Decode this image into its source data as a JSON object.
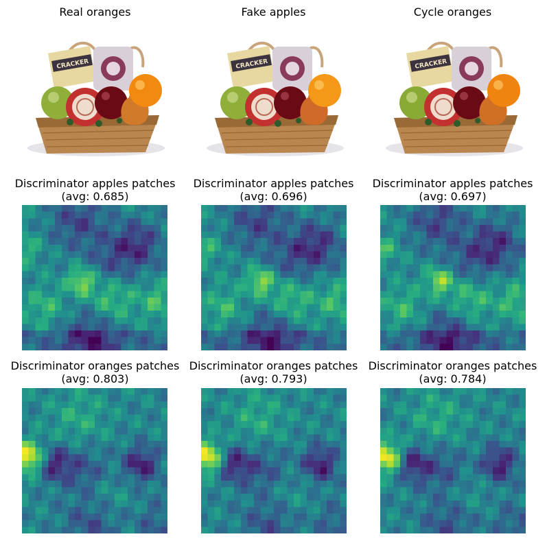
{
  "figure": {
    "rows": [
      {
        "kind": "photo",
        "panels": [
          {
            "title": "Real oranges",
            "subtitle": ""
          },
          {
            "title": "Fake apples",
            "subtitle": ""
          },
          {
            "title": "Cycle oranges",
            "subtitle": ""
          }
        ]
      },
      {
        "kind": "heatmap",
        "panels": [
          {
            "title": "Discriminator apples patches",
            "subtitle": "(avg: 0.685)"
          },
          {
            "title": "Discriminator apples patches",
            "subtitle": "(avg: 0.696)"
          },
          {
            "title": "Discriminator apples patches",
            "subtitle": "(avg: 0.697)"
          }
        ]
      },
      {
        "kind": "heatmap",
        "panels": [
          {
            "title": "Discriminator oranges patches",
            "subtitle": "(avg: 0.803)"
          },
          {
            "title": "Discriminator oranges patches",
            "subtitle": "(avg: 0.793)"
          },
          {
            "title": "Discriminator oranges patches",
            "subtitle": "(avg: 0.784)"
          }
        ]
      }
    ],
    "colormap": "viridis",
    "photo_subject": "gift basket with crackers, cheese, apples, pear and orange"
  }
}
